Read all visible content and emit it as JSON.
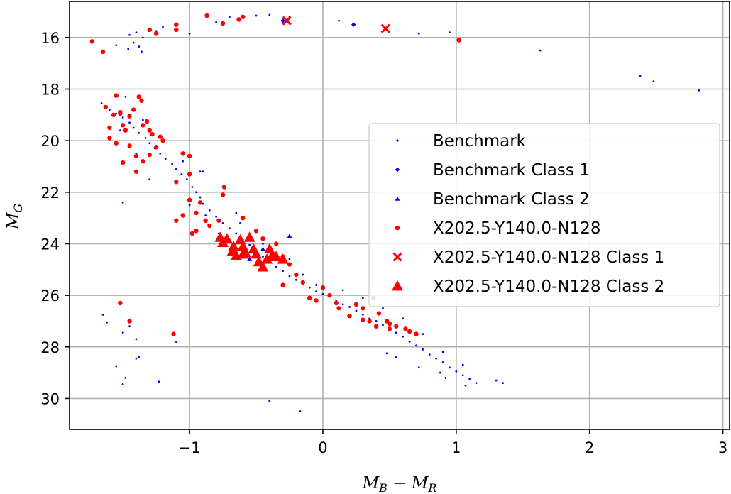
{
  "chart_data": {
    "type": "scatter",
    "xlabel": {
      "main": "M",
      "sub1": "B",
      "minus": " − ",
      "main2": "M",
      "sub2": "R"
    },
    "ylabel": {
      "main": "M",
      "sub": "G"
    },
    "xlim": [
      -1.9,
      3.05
    ],
    "ylim": [
      31.2,
      14.6
    ],
    "y_inverted": true,
    "grid": true,
    "legend_position": "center-right",
    "x_ticks": [
      -1,
      0,
      1,
      2,
      3
    ],
    "x_tick_labels": [
      "−1",
      "0",
      "1",
      "2",
      "3"
    ],
    "y_ticks": [
      16,
      18,
      20,
      22,
      24,
      26,
      28,
      30
    ],
    "y_tick_labels": [
      "16",
      "18",
      "20",
      "22",
      "24",
      "26",
      "28",
      "30"
    ],
    "colors": {
      "benchmark": "#0000ff",
      "model": "#ff0000",
      "grid": "#b0b0b0"
    },
    "series": [
      {
        "name": "Benchmark",
        "marker": "point",
        "color": "#0000ff",
        "points": [
          [
            -1.45,
            15.9
          ],
          [
            -1.4,
            15.8
          ],
          [
            -1.35,
            16.0
          ],
          [
            -1.42,
            16.2
          ],
          [
            -1.38,
            16.35
          ],
          [
            -1.46,
            16.45
          ],
          [
            -1.36,
            16.55
          ],
          [
            -1.55,
            16.3
          ],
          [
            -1.25,
            15.75
          ],
          [
            -1.2,
            15.6
          ],
          [
            -1.0,
            15.85
          ],
          [
            -0.8,
            15.4
          ],
          [
            -0.7,
            15.2
          ],
          [
            -0.5,
            15.15
          ],
          [
            -0.4,
            15.12
          ],
          [
            -0.25,
            15.2
          ],
          [
            0.12,
            15.35
          ],
          [
            0.72,
            15.85
          ],
          [
            0.95,
            15.8
          ],
          [
            1.63,
            16.5
          ],
          [
            2.38,
            17.5
          ],
          [
            2.48,
            17.7
          ],
          [
            2.82,
            18.05
          ],
          [
            -1.66,
            18.55
          ],
          [
            -1.62,
            18.7
          ],
          [
            -1.55,
            18.95
          ],
          [
            -1.5,
            19.1
          ],
          [
            -1.45,
            19.3
          ],
          [
            -1.42,
            19.5
          ],
          [
            -1.38,
            19.7
          ],
          [
            -1.33,
            19.9
          ],
          [
            -1.3,
            20.1
          ],
          [
            -1.26,
            20.3
          ],
          [
            -1.22,
            20.5
          ],
          [
            -1.18,
            20.7
          ],
          [
            -1.13,
            20.9
          ],
          [
            -1.1,
            21.1
          ],
          [
            -1.06,
            21.3
          ],
          [
            -1.02,
            21.5
          ],
          [
            -0.98,
            21.8
          ],
          [
            -0.95,
            22.0
          ],
          [
            -0.92,
            22.2
          ],
          [
            -0.9,
            22.45
          ],
          [
            -0.85,
            22.7
          ],
          [
            -0.8,
            22.95
          ],
          [
            -0.75,
            23.2
          ],
          [
            -0.7,
            23.4
          ],
          [
            -0.65,
            23.6
          ],
          [
            -0.6,
            23.85
          ],
          [
            -0.55,
            24.05
          ],
          [
            -0.5,
            24.3
          ],
          [
            -0.45,
            24.5
          ],
          [
            -0.4,
            24.7
          ],
          [
            -0.35,
            24.9
          ],
          [
            -0.3,
            25.05
          ],
          [
            -0.25,
            25.25
          ],
          [
            -0.2,
            25.4
          ],
          [
            -0.15,
            25.55
          ],
          [
            -0.1,
            25.7
          ],
          [
            -0.05,
            25.85
          ],
          [
            0.0,
            25.95
          ],
          [
            0.05,
            26.05
          ],
          [
            0.1,
            26.2
          ],
          [
            0.15,
            26.35
          ],
          [
            0.2,
            26.45
          ],
          [
            0.25,
            26.6
          ],
          [
            0.3,
            26.75
          ],
          [
            0.35,
            26.9
          ],
          [
            0.4,
            27.0
          ],
          [
            0.45,
            27.15
          ],
          [
            0.5,
            27.3
          ],
          [
            0.55,
            27.45
          ],
          [
            0.6,
            27.6
          ],
          [
            0.65,
            27.8
          ],
          [
            0.7,
            27.95
          ],
          [
            0.75,
            28.1
          ],
          [
            0.8,
            28.3
          ],
          [
            0.85,
            28.45
          ],
          [
            0.9,
            28.6
          ],
          [
            0.95,
            28.8
          ],
          [
            1.0,
            28.95
          ],
          [
            1.05,
            29.1
          ],
          [
            1.1,
            29.25
          ],
          [
            1.15,
            29.4
          ],
          [
            1.3,
            29.3
          ],
          [
            1.35,
            29.4
          ],
          [
            1.07,
            29.5
          ],
          [
            -1.48,
            18.3
          ],
          [
            -1.6,
            18.8
          ],
          [
            -1.52,
            19.6
          ],
          [
            -1.35,
            19.2
          ],
          [
            -1.4,
            20.5
          ],
          [
            -1.2,
            20.0
          ],
          [
            -1.05,
            20.8
          ],
          [
            -0.92,
            21.2
          ],
          [
            -0.88,
            22.9
          ],
          [
            -0.78,
            23.6
          ],
          [
            -0.62,
            23.2
          ],
          [
            -0.45,
            24.0
          ],
          [
            -0.35,
            24.35
          ],
          [
            -0.25,
            24.6
          ],
          [
            -0.15,
            25.2
          ],
          [
            -0.05,
            25.6
          ],
          [
            0.15,
            25.8
          ],
          [
            0.3,
            26.1
          ],
          [
            0.45,
            26.5
          ],
          [
            0.6,
            26.9
          ],
          [
            0.75,
            27.5
          ],
          [
            0.9,
            28.2
          ],
          [
            1.05,
            28.7
          ],
          [
            0.48,
            28.25
          ],
          [
            0.55,
            28.4
          ],
          [
            0.72,
            28.8
          ],
          [
            0.88,
            29.0
          ],
          [
            0.92,
            29.2
          ],
          [
            -1.65,
            26.75
          ],
          [
            -1.62,
            27.05
          ],
          [
            -1.5,
            27.45
          ],
          [
            -1.45,
            27.2
          ],
          [
            -1.4,
            27.7
          ],
          [
            -1.55,
            28.75
          ],
          [
            -1.48,
            29.2
          ],
          [
            -1.5,
            29.45
          ],
          [
            -1.4,
            28.45
          ],
          [
            -1.23,
            29.35
          ],
          [
            -1.38,
            28.4
          ],
          [
            -1.1,
            27.8
          ],
          [
            -0.4,
            30.1
          ],
          [
            -0.17,
            30.5
          ],
          [
            -1.5,
            22.4
          ],
          [
            -1.3,
            21.5
          ],
          [
            -1.0,
            22.5
          ],
          [
            -0.9,
            21.2
          ],
          [
            -0.65,
            22.8
          ]
        ]
      },
      {
        "name": "Benchmark Class 1",
        "marker": "diamond",
        "color": "#0000ff",
        "points": [
          [
            -0.3,
            15.35
          ],
          [
            0.23,
            15.5
          ]
        ]
      },
      {
        "name": "Benchmark Class 2",
        "marker": "triangle",
        "color": "#0000ff",
        "points": [
          [
            -0.45,
            24.2
          ],
          [
            -0.25,
            23.7
          ],
          [
            -0.55,
            24.6
          ]
        ]
      },
      {
        "name": "X202.5-Y140.0-N128",
        "marker": "dot",
        "color": "#ff0000",
        "points": [
          [
            -1.73,
            16.15
          ],
          [
            -1.65,
            16.55
          ],
          [
            -1.3,
            15.7
          ],
          [
            -1.25,
            15.85
          ],
          [
            -1.1,
            15.5
          ],
          [
            -1.1,
            15.7
          ],
          [
            -0.87,
            15.15
          ],
          [
            -0.63,
            15.3
          ],
          [
            -0.75,
            15.45
          ],
          [
            -0.6,
            15.2
          ],
          [
            1.02,
            16.1
          ],
          [
            -1.63,
            18.7
          ],
          [
            -1.57,
            19.0
          ],
          [
            -1.55,
            18.25
          ],
          [
            -1.52,
            18.95
          ],
          [
            -1.45,
            19.05
          ],
          [
            -1.42,
            18.8
          ],
          [
            -1.38,
            18.3
          ],
          [
            -1.36,
            18.45
          ],
          [
            -1.35,
            19.4
          ],
          [
            -1.32,
            19.25
          ],
          [
            -1.3,
            19.6
          ],
          [
            -1.28,
            19.75
          ],
          [
            -1.22,
            19.85
          ],
          [
            -1.2,
            20.0
          ],
          [
            -1.25,
            20.25
          ],
          [
            -1.3,
            20.55
          ],
          [
            -1.35,
            20.8
          ],
          [
            -1.4,
            21.2
          ],
          [
            -1.6,
            19.9
          ],
          [
            -1.55,
            20.1
          ],
          [
            -1.5,
            19.4
          ],
          [
            -1.45,
            20.2
          ],
          [
            -1.4,
            20.6
          ],
          [
            -1.5,
            20.85
          ],
          [
            -1.52,
            18.9
          ],
          [
            -1.48,
            19.6
          ],
          [
            -1.6,
            19.5
          ],
          [
            -1.05,
            20.5
          ],
          [
            -1.0,
            20.6
          ],
          [
            -1.0,
            21.3
          ],
          [
            -1.1,
            21.6
          ],
          [
            -0.92,
            22.4
          ],
          [
            -0.95,
            22.8
          ],
          [
            -1.0,
            22.3
          ],
          [
            -1.05,
            22.9
          ],
          [
            -1.1,
            23.1
          ],
          [
            -0.95,
            23.5
          ],
          [
            -0.98,
            23.6
          ],
          [
            -0.88,
            23.1
          ],
          [
            -0.85,
            23.3
          ],
          [
            -0.75,
            22.1
          ],
          [
            -0.74,
            21.8
          ],
          [
            -0.6,
            23.0
          ],
          [
            -0.78,
            23.1
          ],
          [
            -0.5,
            23.5
          ],
          [
            -0.45,
            23.8
          ],
          [
            -0.35,
            24.0
          ],
          [
            -0.3,
            24.5
          ],
          [
            -0.25,
            24.8
          ],
          [
            -0.2,
            25.2
          ],
          [
            -0.15,
            25.5
          ],
          [
            -0.3,
            25.6
          ],
          [
            -0.05,
            26.2
          ],
          [
            -0.1,
            26.1
          ],
          [
            0.0,
            25.7
          ],
          [
            0.1,
            26.3
          ],
          [
            0.12,
            26.5
          ],
          [
            0.2,
            26.8
          ],
          [
            0.3,
            26.95
          ],
          [
            0.25,
            26.35
          ],
          [
            0.35,
            27.0
          ],
          [
            0.4,
            27.2
          ],
          [
            0.42,
            26.7
          ],
          [
            0.48,
            27.0
          ],
          [
            0.5,
            27.3
          ],
          [
            0.55,
            27.2
          ],
          [
            0.62,
            27.3
          ],
          [
            0.65,
            27.4
          ],
          [
            0.7,
            27.5
          ],
          [
            0.5,
            27.1
          ],
          [
            0.05,
            26.0
          ],
          [
            0.38,
            26.1
          ],
          [
            0.3,
            26.5
          ],
          [
            -1.52,
            26.3
          ],
          [
            -1.45,
            27.0
          ],
          [
            -1.12,
            27.5
          ]
        ]
      },
      {
        "name": "X202.5-Y140.0-N128 Class 1",
        "marker": "x",
        "color": "#ff0000",
        "points": [
          [
            -0.27,
            15.35
          ],
          [
            0.47,
            15.65
          ]
        ]
      },
      {
        "name": "X202.5-Y140.0-N128 Class 2",
        "marker": "triangle",
        "color": "#ff0000",
        "points": [
          [
            -0.77,
            23.75
          ],
          [
            -0.75,
            23.95
          ],
          [
            -0.72,
            23.8
          ],
          [
            -0.68,
            24.3
          ],
          [
            -0.65,
            24.45
          ],
          [
            -0.62,
            23.85
          ],
          [
            -0.6,
            24.1
          ],
          [
            -0.58,
            24.35
          ],
          [
            -0.55,
            23.75
          ],
          [
            -0.52,
            24.2
          ],
          [
            -0.5,
            24.4
          ],
          [
            -0.45,
            24.9
          ],
          [
            -0.42,
            24.6
          ],
          [
            -0.4,
            24.2
          ],
          [
            -0.38,
            24.45
          ],
          [
            -0.35,
            24.5
          ],
          [
            -0.3,
            24.6
          ],
          [
            -0.48,
            24.7
          ],
          [
            -0.67,
            24.1
          ],
          [
            -0.6,
            24.4
          ]
        ]
      }
    ]
  }
}
